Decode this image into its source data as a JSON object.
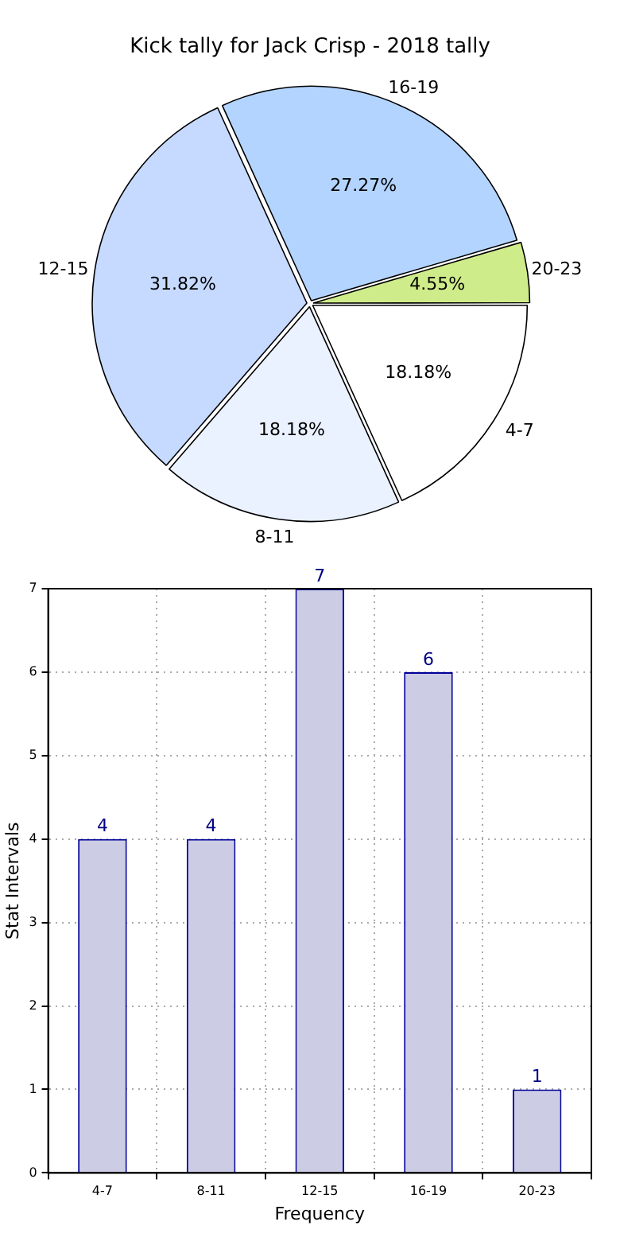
{
  "chart_data": [
    {
      "type": "pie",
      "title": "Kick tally for Jack Crisp - 2018 tally",
      "categories": [
        "4-7",
        "8-11",
        "12-15",
        "16-19",
        "20-23"
      ],
      "values": [
        18.18,
        18.18,
        31.82,
        27.27,
        4.55
      ],
      "value_labels": [
        "18.18%",
        "18.18%",
        "31.82%",
        "27.27%",
        "4.55%"
      ],
      "colors": [
        "#ffffff",
        "#eaf1ff",
        "#c6d9ff",
        "#b3d4ff",
        "#cfec8a"
      ]
    },
    {
      "type": "bar",
      "xlabel": "Frequency",
      "ylabel": "Stat Intervals",
      "categories": [
        "4-7",
        "8-11",
        "12-15",
        "16-19",
        "20-23"
      ],
      "values": [
        4,
        4,
        7,
        6,
        1
      ],
      "color": "#ccccE5",
      "ylim": [
        0,
        7
      ],
      "yticks": [
        0,
        1,
        2,
        3,
        4,
        5,
        6,
        7
      ],
      "grid": true,
      "data_labels": true
    }
  ]
}
